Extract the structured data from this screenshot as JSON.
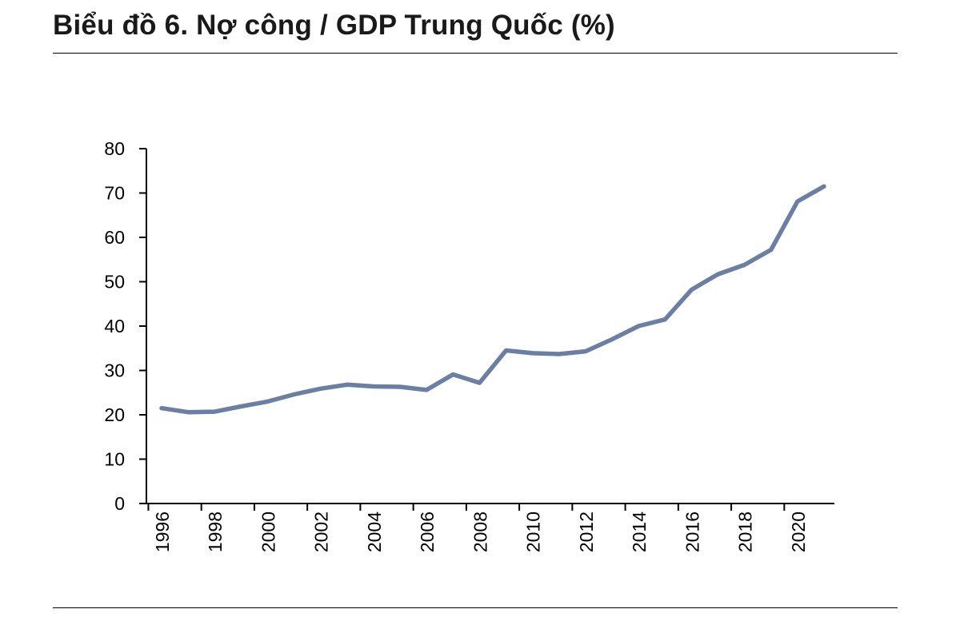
{
  "header": {
    "title": "Biểu đồ 6. Nợ công / GDP Trung Quốc (%)"
  },
  "chart_data": {
    "type": "line",
    "title": "Biểu đồ 6. Nợ công / GDP Trung Quốc (%)",
    "xlabel": "",
    "ylabel": "",
    "x": [
      1996,
      1997,
      1998,
      1999,
      2000,
      2001,
      2002,
      2003,
      2004,
      2005,
      2006,
      2007,
      2008,
      2009,
      2010,
      2011,
      2012,
      2013,
      2014,
      2015,
      2016,
      2017,
      2018,
      2019,
      2020,
      2021
    ],
    "x_tick_labels": [
      "1996",
      "1998",
      "2000",
      "2002",
      "2004",
      "2006",
      "2008",
      "2010",
      "2012",
      "2014",
      "2016",
      "2018",
      "2020"
    ],
    "y_tick_labels": [
      "0",
      "10",
      "20",
      "30",
      "40",
      "50",
      "60",
      "70",
      "80"
    ],
    "ylim": [
      0,
      80
    ],
    "grid": false,
    "legend": "none",
    "series": [
      {
        "name": "Nợ công / GDP",
        "color": "#6b7fa3",
        "values": [
          21.5,
          20.6,
          20.7,
          21.9,
          23.0,
          24.6,
          25.9,
          26.8,
          26.4,
          26.3,
          25.6,
          29.1,
          27.2,
          34.5,
          33.9,
          33.7,
          34.3,
          37.0,
          40.0,
          41.5,
          48.2,
          51.7,
          53.8,
          57.2,
          68.1,
          71.5
        ]
      }
    ]
  }
}
